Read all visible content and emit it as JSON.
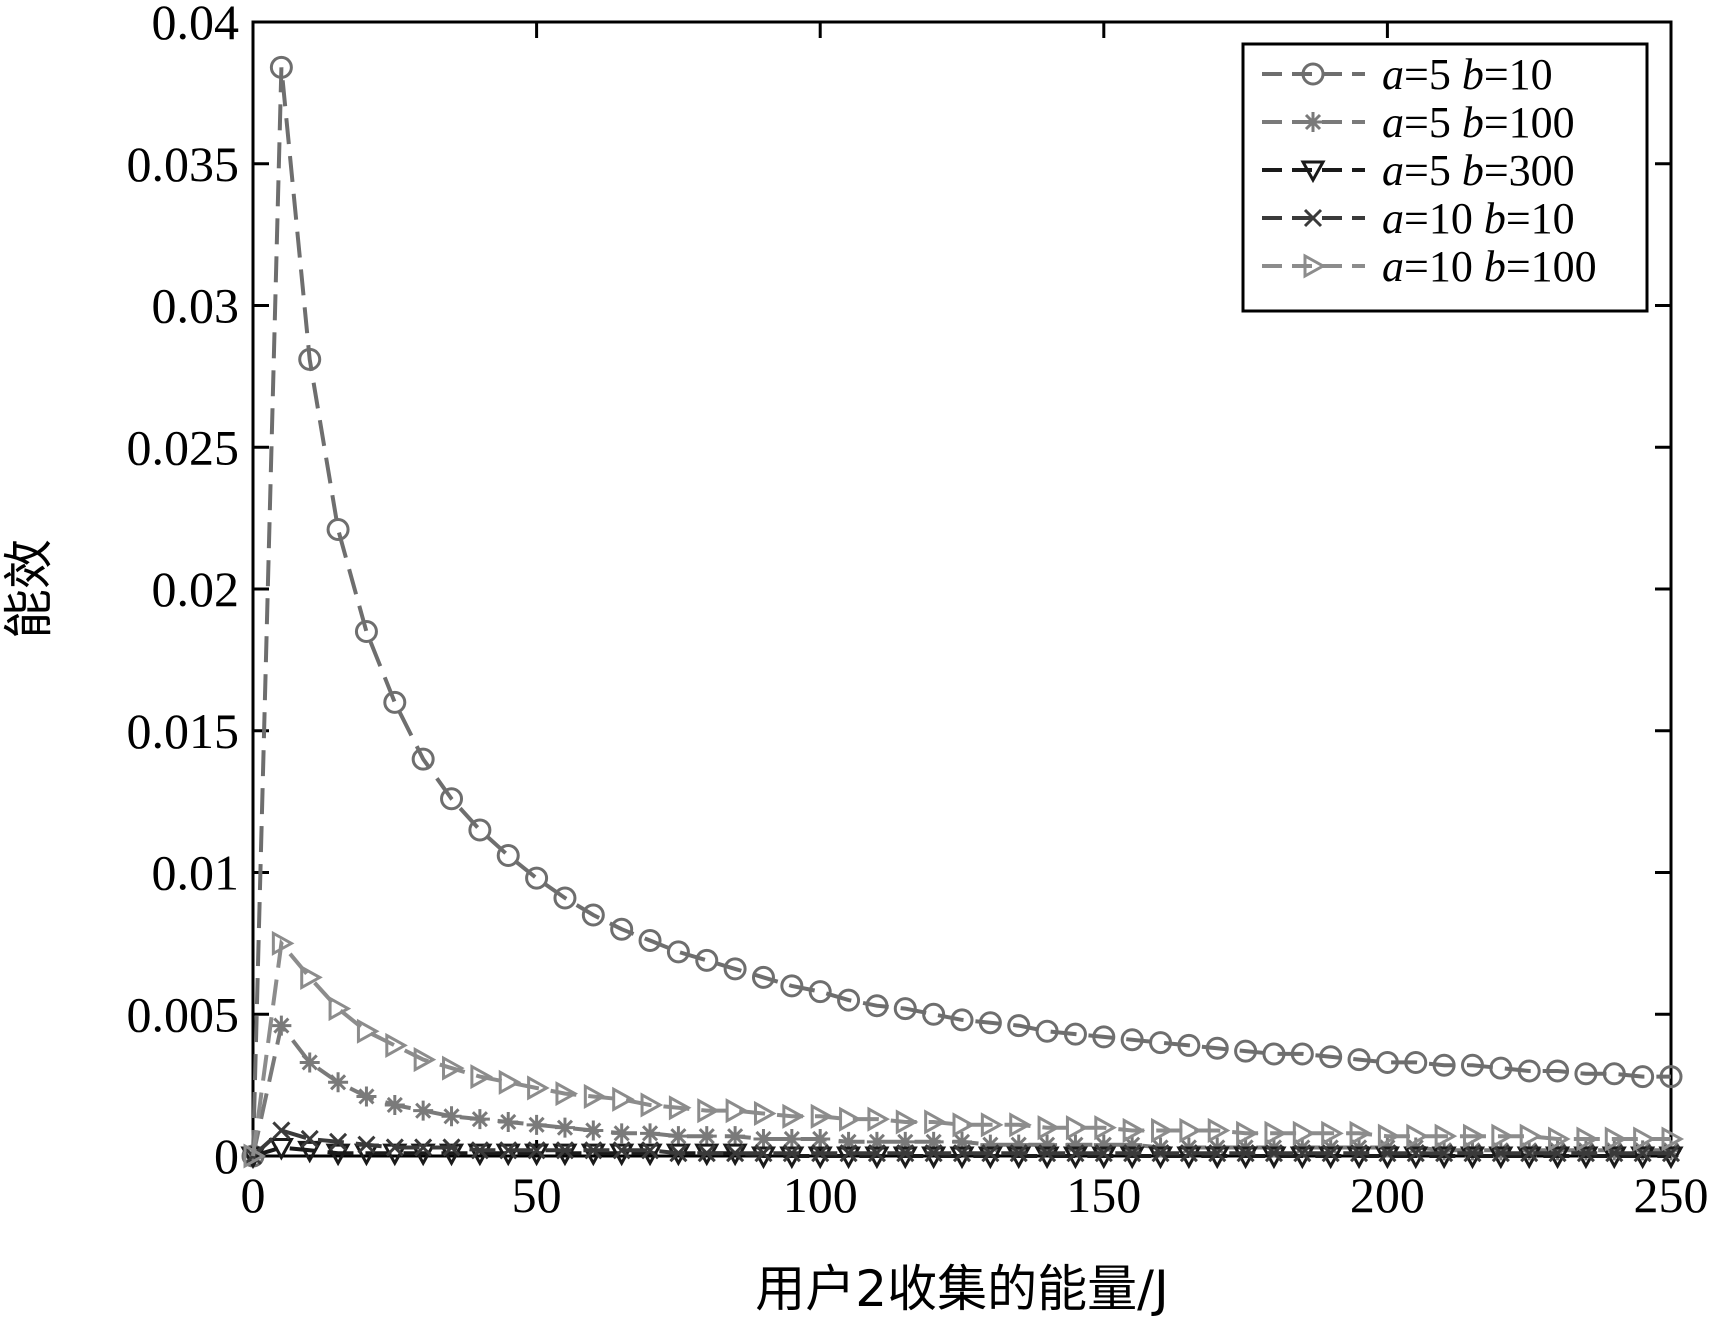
{
  "chart_data": {
    "type": "line",
    "xlabel": "用户2收集的能量/J",
    "ylabel": "能效",
    "xlim": [
      0,
      250
    ],
    "ylim": [
      0,
      0.04
    ],
    "xticks": [
      "0",
      "50",
      "100",
      "150",
      "200",
      "250"
    ],
    "yticks": [
      "0",
      "0.005",
      "0.01",
      "0.015",
      "0.02",
      "0.025",
      "0.03",
      "0.035",
      "0.04"
    ],
    "grid": false,
    "legend_position": "top-right",
    "legend": [
      {
        "a": "a",
        "a_val": "=5 ",
        "b": "b",
        "b_val": "=10"
      },
      {
        "a": "a",
        "a_val": "=5 ",
        "b": "b",
        "b_val": "=100"
      },
      {
        "a": "a",
        "a_val": "=5 ",
        "b": "b",
        "b_val": "=300"
      },
      {
        "a": "a",
        "a_val": "=10 ",
        "b": "b",
        "b_val": "=10"
      },
      {
        "a": "a",
        "a_val": "=10 ",
        "b": "b",
        "b_val": "=100"
      }
    ],
    "x": [
      0,
      5,
      10,
      15,
      20,
      25,
      30,
      35,
      40,
      45,
      50,
      55,
      60,
      65,
      70,
      75,
      80,
      85,
      90,
      95,
      100,
      105,
      110,
      115,
      120,
      125,
      130,
      135,
      140,
      145,
      150,
      155,
      160,
      165,
      170,
      175,
      180,
      185,
      190,
      195,
      200,
      205,
      210,
      215,
      220,
      225,
      230,
      235,
      240,
      245,
      250
    ],
    "series": [
      {
        "marker": "circle",
        "color": "#6e6e6e",
        "values": [
          0,
          0.0384,
          0.0281,
          0.0221,
          0.0185,
          0.016,
          0.014,
          0.0126,
          0.0115,
          0.0106,
          0.0098,
          0.0091,
          0.0085,
          0.008,
          0.0076,
          0.0072,
          0.0069,
          0.0066,
          0.0063,
          0.006,
          0.0058,
          0.0055,
          0.0053,
          0.0052,
          0.005,
          0.0048,
          0.0047,
          0.0046,
          0.0044,
          0.0043,
          0.0042,
          0.0041,
          0.004,
          0.0039,
          0.0038,
          0.0037,
          0.0036,
          0.0036,
          0.0035,
          0.0034,
          0.0033,
          0.0033,
          0.0032,
          0.0032,
          0.0031,
          0.003,
          0.003,
          0.0029,
          0.0029,
          0.0028,
          0.0028
        ]
      },
      {
        "marker": "star",
        "color": "#7a7a7a",
        "values": [
          0,
          0.0046,
          0.0033,
          0.0026,
          0.0021,
          0.0018,
          0.0016,
          0.0014,
          0.0013,
          0.0012,
          0.0011,
          0.001,
          0.0009,
          0.0008,
          0.0008,
          0.0007,
          0.0007,
          0.0007,
          0.0006,
          0.0006,
          0.0006,
          0.0005,
          0.0005,
          0.0005,
          0.0005,
          0.0005,
          0.0004,
          0.0004,
          0.0004,
          0.0004,
          0.0004,
          0.0004,
          0.0003,
          0.0003,
          0.0003,
          0.0003,
          0.0003,
          0.0003,
          0.0003,
          0.0003,
          0.0003,
          0.0003,
          0.0002,
          0.0002,
          0.0002,
          0.0002,
          0.0002,
          0.0002,
          0.0002,
          0.0002,
          0.0002
        ]
      },
      {
        "marker": "triangle-down",
        "color": "#1a1a1a",
        "values": [
          0,
          0.0003,
          0.0002,
          0.0001,
          0.0001,
          0.0001,
          0.0001,
          0.0001,
          0.0001,
          0.0001,
          0.0001,
          0.0001,
          0.0001,
          0.0001,
          0.0001,
          0.0001,
          0.0001,
          0.0001,
          0,
          0,
          0,
          0,
          0,
          0,
          0,
          0,
          0,
          0,
          0,
          0,
          0,
          0,
          0,
          0,
          0,
          0,
          0,
          0,
          0,
          0,
          0,
          0,
          0,
          0,
          0,
          0,
          0,
          0,
          0,
          0,
          0
        ]
      },
      {
        "marker": "x",
        "color": "#3a3a3a",
        "values": [
          0,
          0.0009,
          0.0006,
          0.0005,
          0.0004,
          0.0003,
          0.0003,
          0.0003,
          0.0002,
          0.0002,
          0.0002,
          0.0002,
          0.0002,
          0.0002,
          0.0002,
          0.0001,
          0.0001,
          0.0001,
          0.0001,
          0.0001,
          0.0001,
          0.0001,
          0.0001,
          0.0001,
          0.0001,
          0.0001,
          0.0001,
          0.0001,
          0.0001,
          0.0001,
          0.0001,
          0.0001,
          0.0001,
          0.0001,
          0.0001,
          0.0001,
          0.0001,
          0.0001,
          0.0001,
          0.0001,
          0.0001,
          0.0001,
          0.0001,
          0.0001,
          0.0001,
          0.0001,
          0.0001,
          0.0001,
          0.0001,
          0.0001,
          0.0001
        ]
      },
      {
        "marker": "triangle-right",
        "color": "#8c8c8c",
        "values": [
          0,
          0.0075,
          0.0063,
          0.0052,
          0.0044,
          0.0039,
          0.0034,
          0.0031,
          0.0028,
          0.0026,
          0.0024,
          0.0022,
          0.0021,
          0.002,
          0.0018,
          0.0017,
          0.0016,
          0.0016,
          0.0015,
          0.0014,
          0.0014,
          0.0013,
          0.0013,
          0.0012,
          0.0012,
          0.0011,
          0.0011,
          0.0011,
          0.001,
          0.001,
          0.001,
          0.0009,
          0.0009,
          0.0009,
          0.0009,
          0.0008,
          0.0008,
          0.0008,
          0.0008,
          0.0008,
          0.0007,
          0.0007,
          0.0007,
          0.0007,
          0.0007,
          0.0007,
          0.0006,
          0.0006,
          0.0006,
          0.0006,
          0.0006
        ]
      }
    ]
  }
}
